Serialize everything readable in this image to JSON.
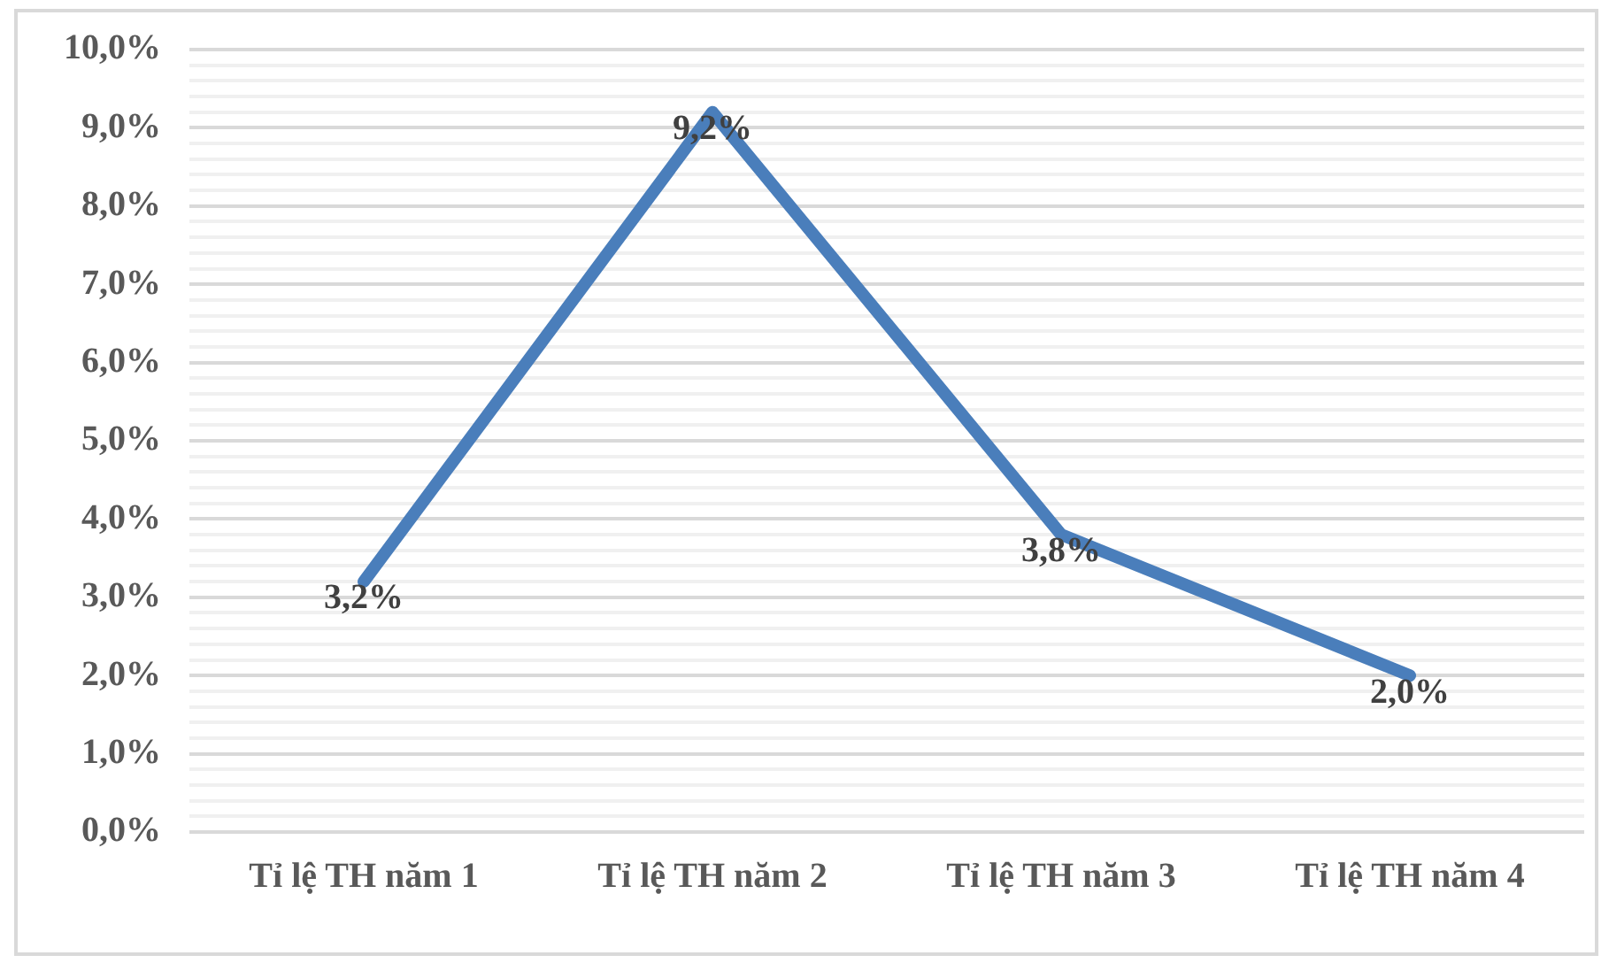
{
  "chart_data": {
    "type": "line",
    "categories": [
      "Tỉ lệ TH năm 1",
      "Tỉ lệ TH năm 2",
      "Tỉ lệ TH năm 3",
      "Tỉ lệ TH năm 4"
    ],
    "series": [
      {
        "color": "#4a7ebb",
        "values": [
          3.2,
          9.2,
          3.8,
          2.0
        ],
        "value_labels": [
          "3,2%",
          "9,2%",
          "3,8%",
          "2,0%"
        ]
      }
    ],
    "ylim": [
      0,
      10
    ],
    "yticks": [
      {
        "value": 0,
        "label": "0,0%"
      },
      {
        "value": 0.2,
        "label": null
      },
      {
        "value": 0.4,
        "label": null
      },
      {
        "value": 0.6,
        "label": null
      },
      {
        "value": 0.8,
        "label": null
      },
      {
        "value": 1,
        "label": "1,0%"
      },
      {
        "value": 1.2,
        "label": null
      },
      {
        "value": 1.4,
        "label": null
      },
      {
        "value": 1.6,
        "label": null
      },
      {
        "value": 1.8,
        "label": null
      },
      {
        "value": 2,
        "label": "2,0%"
      },
      {
        "value": 2.2,
        "label": null
      },
      {
        "value": 2.4,
        "label": null
      },
      {
        "value": 2.6,
        "label": null
      },
      {
        "value": 2.8,
        "label": null
      },
      {
        "value": 3,
        "label": "3,0%"
      },
      {
        "value": 3.2,
        "label": null
      },
      {
        "value": 3.4,
        "label": null
      },
      {
        "value": 3.6,
        "label": null
      },
      {
        "value": 3.8,
        "label": null
      },
      {
        "value": 4,
        "label": "4,0%"
      },
      {
        "value": 4.2,
        "label": null
      },
      {
        "value": 4.4,
        "label": null
      },
      {
        "value": 4.6,
        "label": null
      },
      {
        "value": 4.8,
        "label": null
      },
      {
        "value": 5,
        "label": "5,0%"
      },
      {
        "value": 5.2,
        "label": null
      },
      {
        "value": 5.4,
        "label": null
      },
      {
        "value": 5.6,
        "label": null
      },
      {
        "value": 5.8,
        "label": null
      },
      {
        "value": 6,
        "label": "6,0%"
      },
      {
        "value": 6.2,
        "label": null
      },
      {
        "value": 6.4,
        "label": null
      },
      {
        "value": 6.6,
        "label": null
      },
      {
        "value": 6.8,
        "label": null
      },
      {
        "value": 7,
        "label": "7,0%"
      },
      {
        "value": 7.2,
        "label": null
      },
      {
        "value": 7.4,
        "label": null
      },
      {
        "value": 7.6,
        "label": null
      },
      {
        "value": 7.8,
        "label": null
      },
      {
        "value": 8,
        "label": "8,0%"
      },
      {
        "value": 8.2,
        "label": null
      },
      {
        "value": 8.4,
        "label": null
      },
      {
        "value": 8.6,
        "label": null
      },
      {
        "value": 8.8,
        "label": null
      },
      {
        "value": 9,
        "label": "9,0%"
      },
      {
        "value": 9.2,
        "label": null
      },
      {
        "value": 9.4,
        "label": null
      },
      {
        "value": 9.6,
        "label": null
      },
      {
        "value": 9.8,
        "label": null
      },
      {
        "value": 10,
        "label": "10,0%"
      }
    ],
    "grid": "y",
    "legend": false,
    "marker": "none",
    "line_style": "solid"
  }
}
